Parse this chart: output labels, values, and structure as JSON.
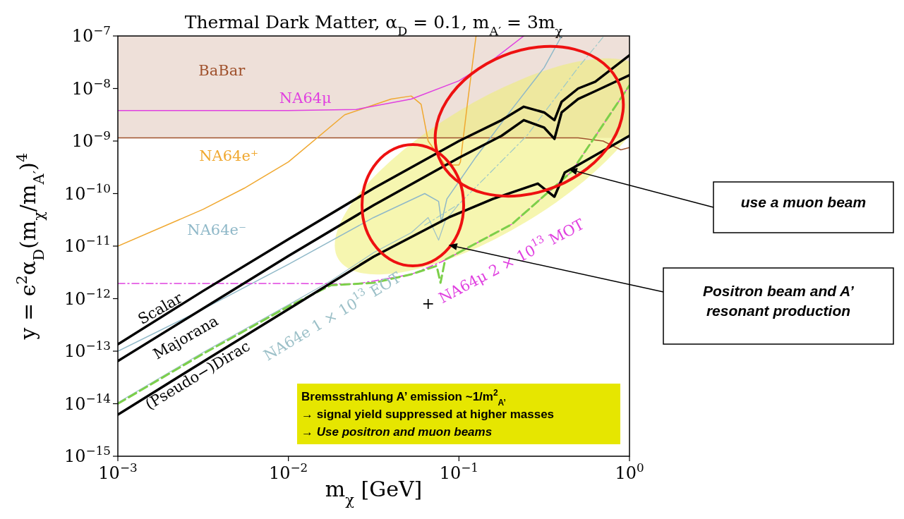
{
  "chart_data": {
    "type": "line",
    "title": "Thermal Dark Matter, α$_{D}$ = 0.1, m$_{A′}$ = 3m$_{χ}$",
    "xlabel": "m$_{χ}$ [GeV]",
    "ylabel": "y = ϵ$^{2}$α$_{D}$(m$_{χ}$/m$_{A′}$)$^{4}$",
    "log": "xy",
    "xlim": [
      0.001,
      1
    ],
    "ylim": [
      1e-15,
      1e-07
    ],
    "xticks": [
      {
        "value": 0.001,
        "label": "10$^{−3}$"
      },
      {
        "value": 0.01,
        "label": "10$^{−2}$"
      },
      {
        "value": 0.1,
        "label": "10$^{−1}$"
      },
      {
        "value": 1,
        "label": "10$^{0}$"
      }
    ],
    "yticks": [
      {
        "value": 1e-15,
        "label": "10$^{−15}$"
      },
      {
        "value": 1e-14,
        "label": "10$^{−14}$"
      },
      {
        "value": 1e-13,
        "label": "10$^{−13}$"
      },
      {
        "value": 1e-12,
        "label": "10$^{−12}$"
      },
      {
        "value": 1e-11,
        "label": "10$^{−11}$"
      },
      {
        "value": 1e-10,
        "label": "10$^{−10}$"
      },
      {
        "value": 1e-09,
        "label": "10$^{−9}$"
      },
      {
        "value": 1e-08,
        "label": "10$^{−8}$"
      },
      {
        "value": 1e-07,
        "label": "10$^{−7}$"
      }
    ],
    "series": [
      {
        "name": "Scalar",
        "color": "#000000",
        "line_style": "solid",
        "x": [
          0.001,
          0.00316,
          0.01,
          0.0316,
          0.1,
          0.178,
          0.24,
          0.316,
          0.363,
          0.4,
          0.5,
          0.63,
          1
        ],
        "values": [
          1.35e-13,
          1.4e-12,
          1.35e-11,
          1.26e-10,
          1e-09,
          2.5e-09,
          4.5e-09,
          3.5e-09,
          2.5e-09,
          5.6e-09,
          1e-08,
          1.35e-08,
          4.3e-08
        ]
      },
      {
        "name": "Majorana",
        "color": "#000000",
        "line_style": "solid",
        "x": [
          0.001,
          0.00316,
          0.01,
          0.0316,
          0.1,
          0.178,
          0.24,
          0.316,
          0.363,
          0.4,
          0.5,
          0.63,
          1
        ],
        "values": [
          6.5e-14,
          6.5e-13,
          6.5e-12,
          6e-11,
          4.8e-10,
          1.26e-09,
          2.5e-09,
          1.8e-09,
          1.1e-09,
          3.5e-09,
          6.3e-09,
          8.9e-09,
          1.8e-08
        ]
      },
      {
        "name": "(Pseudo−)Dirac",
        "color": "#000000",
        "line_style": "solid",
        "x": [
          0.001,
          0.00316,
          0.01,
          0.0316,
          0.087,
          0.158,
          0.29,
          0.363,
          0.417,
          0.5,
          1
        ],
        "values": [
          6.2e-15,
          6.3e-14,
          6.3e-13,
          6.3e-12,
          3.5e-11,
          7.9e-11,
          1.55e-10,
          8.7e-11,
          2.5e-10,
          3.5e-10,
          1.26e-09
        ]
      },
      {
        "color": "#7ccf4a",
        "line_style": "dashed",
        "x": [
          0.001,
          0.00316,
          0.01,
          0.0178,
          0.0316,
          0.0525,
          0.074,
          0.078,
          0.083,
          0.204,
          0.457,
          1
        ],
        "values": [
          1e-14,
          8.9e-14,
          7.1e-13,
          1.8e-12,
          2e-12,
          2.9e-12,
          4.2e-12,
          2e-12,
          5.5e-12,
          2.6e-11,
          2.6e-10,
          1.15e-08
        ]
      },
      {
        "name": "NA64μ 2 × 10$^{13}$ MOT",
        "color": "#e040e0",
        "line_style": "dashdot",
        "x": [
          0.001,
          0.01,
          0.025,
          0.0525,
          0.079,
          0.204,
          0.457,
          1
        ],
        "values": [
          1.95e-12,
          1.95e-12,
          1.9e-12,
          2.9e-12,
          5e-12,
          2.6e-11,
          2.6e-10,
          1.15e-08
        ]
      },
      {
        "name": "NA64μ",
        "color": "#e040e0",
        "line_style": "solid",
        "x": [
          0.001,
          0.01,
          0.025,
          0.0525,
          0.1,
          0.158,
          0.24
        ],
        "values": [
          3.8e-09,
          3.8e-09,
          4e-09,
          6.3e-09,
          1.4e-08,
          3.5e-08,
          1e-07
        ]
      },
      {
        "name": "NA64e⁺",
        "color": "#f0a830",
        "line_style": "solid",
        "x": [
          0.001,
          0.00316,
          0.0055,
          0.01,
          0.0214,
          0.04,
          0.0525,
          0.06,
          0.066,
          0.083,
          0.1,
          0.102,
          0.112,
          0.126
        ],
        "values": [
          1e-11,
          5e-11,
          1.26e-10,
          4e-10,
          3.16e-09,
          6.3e-09,
          7.2e-09,
          5e-09,
          1e-09,
          3.5e-10,
          3.5e-10,
          4e-10,
          5e-09,
          1e-07
        ]
      },
      {
        "name": "NA64e⁻",
        "color": "#8fb8c8",
        "line_style": "solid",
        "x": [
          0.001,
          0.00316,
          0.01,
          0.0316,
          0.063,
          0.076,
          0.079,
          0.085,
          0.126,
          0.204,
          0.316,
          0.4
        ],
        "values": [
          1e-13,
          6.3e-13,
          4.5e-12,
          3.5e-11,
          1e-10,
          7.1e-11,
          2.8e-11,
          7.9e-11,
          5e-10,
          4e-09,
          2.5e-08,
          1e-07
        ]
      },
      {
        "name": "NA64e 1 × 10$^{13}$ EOT",
        "color": "#9cc0c8",
        "line_style": "solid",
        "x": [
          0.001,
          0.00316,
          0.01,
          0.0178,
          0.0316,
          0.0525,
          0.066,
          0.076,
          0.083,
          0.1
        ],
        "values": [
          1.05e-14,
          9.5e-14,
          7.6e-13,
          2.2e-12,
          7.5e-12,
          1.8e-11,
          3.5e-11,
          1.3e-11,
          3e-11,
          6.3e-11
        ]
      },
      {
        "color": "#9cc8c8",
        "line_style": "dashdot",
        "x": [
          0.063,
          0.1,
          0.25,
          0.5,
          0.71
        ],
        "values": [
          2.5e-11,
          6.3e-11,
          1.26e-09,
          2.5e-08,
          1e-07
        ]
      },
      {
        "color": "#a0522d",
        "line_style": "solid",
        "x": [
          0.001,
          0.5,
          0.7,
          0.89,
          1
        ],
        "values": [
          1.15e-09,
          1.15e-09,
          1e-09,
          6.8e-10,
          7.5e-10
        ]
      }
    ],
    "bands": [
      {
        "axis": "y",
        "from": 1.15e-09,
        "to": 1e-07,
        "label": "BaBar",
        "color": "#a0522d"
      }
    ],
    "annotations": [
      "use a muon beam",
      "Positron beam and A’ resonant production",
      "Bremsstrahlung A’ emission ~1/m$^{2}$$_{A’}$\n→ signal yield suppressed at higher masses\n→ Use positron and muon beams",
      "+"
    ]
  }
}
